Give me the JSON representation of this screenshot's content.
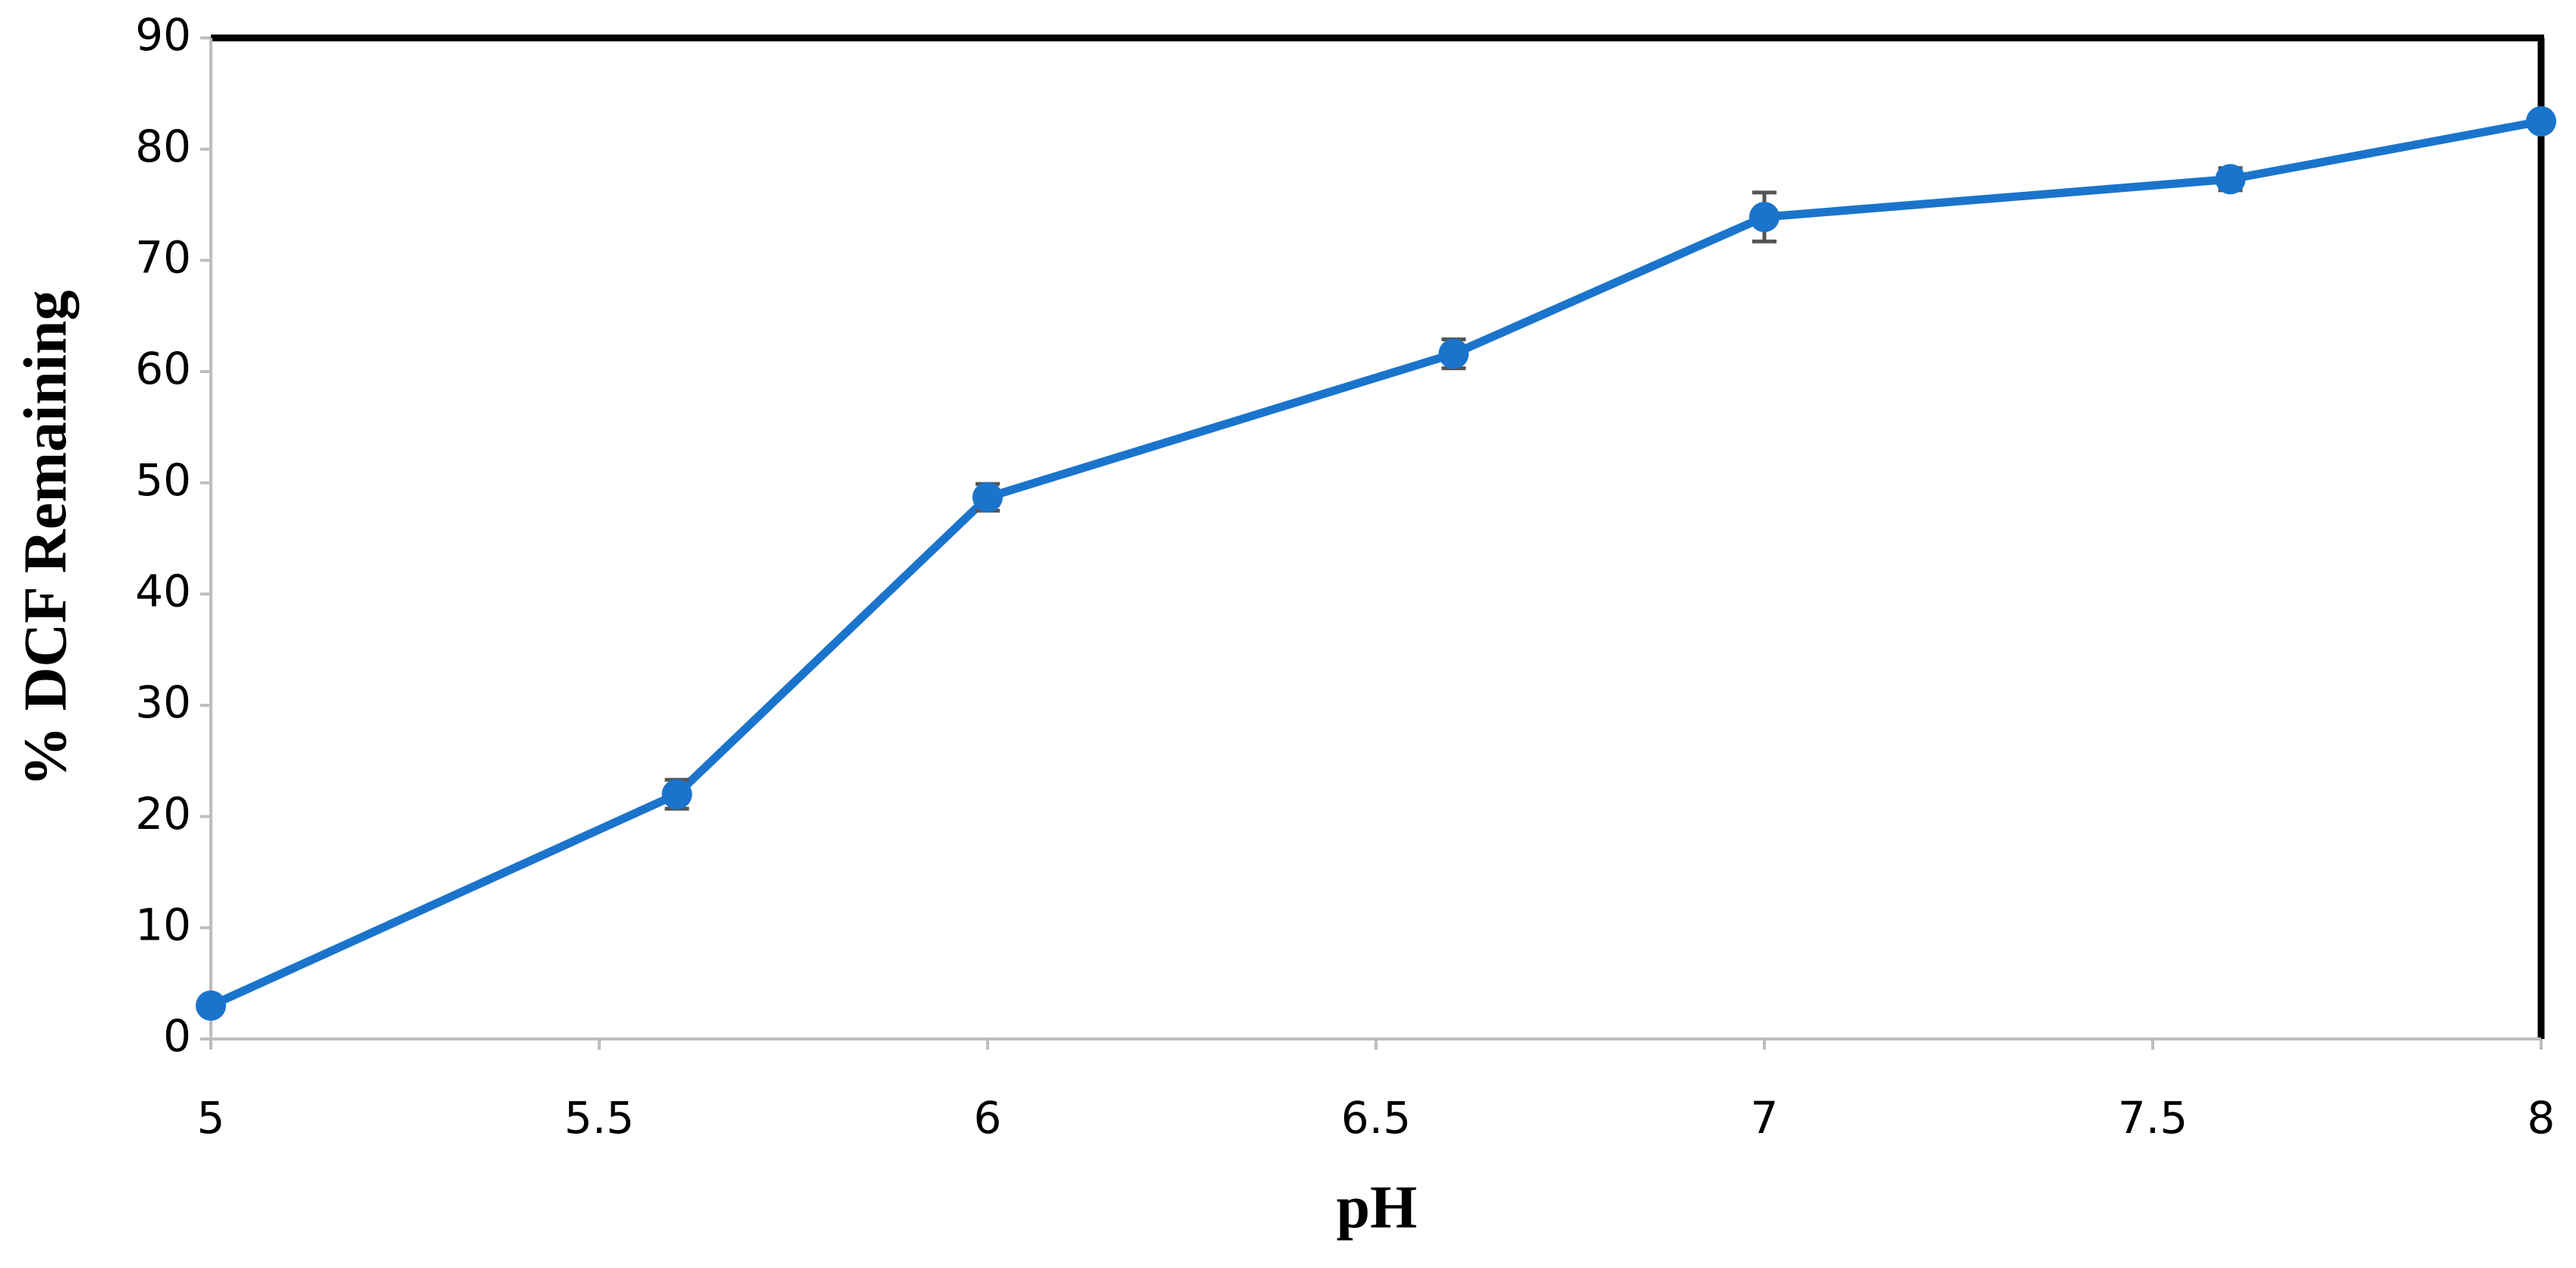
{
  "chart_data": {
    "type": "line",
    "xlabel": "pH",
    "ylabel": "% DCF Remaining",
    "x": [
      5,
      5.6,
      6,
      6.6,
      7,
      7.6,
      8
    ],
    "series": [
      {
        "color": "#1b74cc",
        "values": [
          3,
          22,
          48.7,
          61.6,
          73.9,
          77.3,
          82.5
        ],
        "errors": [
          0.5,
          1.3,
          1.2,
          1.3,
          2.2,
          1.0,
          0.5
        ]
      }
    ],
    "xlim": [
      5,
      8
    ],
    "xticks": [
      5,
      5.5,
      6,
      6.5,
      7,
      7.5,
      8
    ],
    "ylim": [
      0,
      90
    ],
    "yticks": [
      0,
      10,
      20,
      30,
      40,
      50,
      60,
      70,
      80,
      90
    ]
  }
}
